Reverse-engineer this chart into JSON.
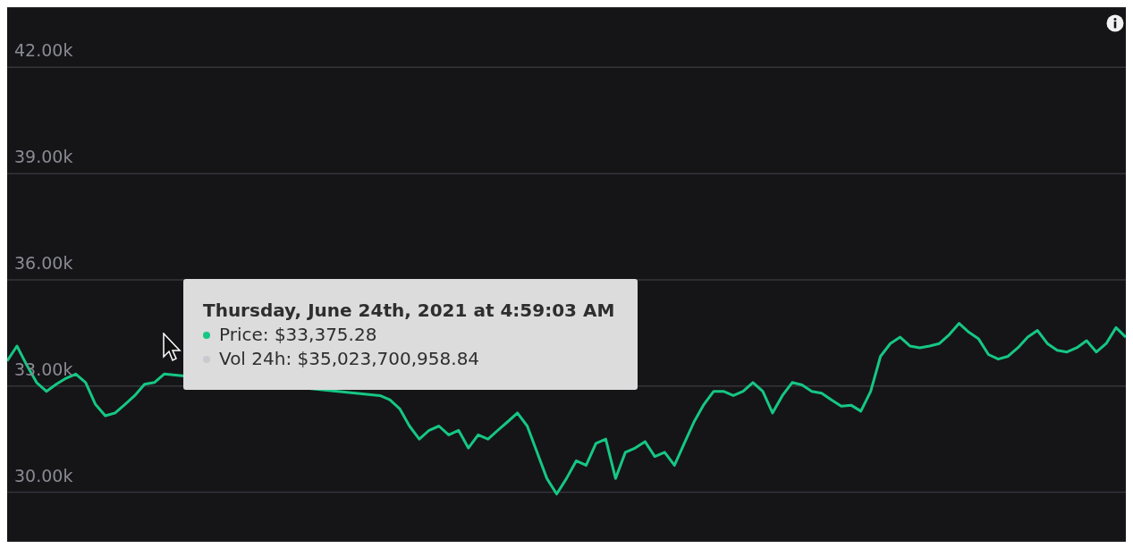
{
  "chart_data": {
    "type": "line",
    "categories": [
      null,
      null,
      null,
      null,
      null,
      null,
      null,
      null,
      null,
      null,
      null,
      null,
      null,
      null,
      null,
      null,
      null,
      null,
      null,
      null,
      null,
      null,
      null,
      null,
      null,
      null,
      null,
      null,
      null,
      null,
      null,
      null,
      null,
      null,
      null,
      null,
      null,
      null,
      null,
      null,
      null,
      null,
      null,
      null,
      null,
      null,
      null,
      null,
      null,
      null,
      null,
      null,
      null,
      null,
      null,
      null,
      null,
      null,
      null,
      null,
      null,
      null,
      null,
      null,
      null,
      null,
      null,
      null,
      null,
      null,
      null,
      null,
      null,
      null,
      null,
      null,
      null,
      null,
      null,
      null,
      null,
      null,
      null,
      null,
      null,
      null,
      null,
      null,
      null,
      null,
      null,
      null,
      null,
      null,
      null,
      null,
      null,
      null,
      null,
      null,
      null,
      null,
      null,
      null,
      null,
      null,
      null,
      null,
      null,
      null,
      null,
      null,
      null,
      null,
      null
    ],
    "values": [
      33710,
      34130,
      33590,
      33100,
      32850,
      33050,
      33220,
      33340,
      33100,
      32480,
      32160,
      32240,
      32480,
      32730,
      33050,
      33100,
      33340,
      null,
      null,
      null,
      null,
      null,
      null,
      null,
      null,
      null,
      null,
      null,
      null,
      null,
      null,
      null,
      null,
      null,
      null,
      null,
      null,
      null,
      32730,
      32610,
      32360,
      31870,
      31500,
      31750,
      31870,
      31620,
      31750,
      31250,
      31620,
      31500,
      31750,
      31990,
      32240,
      31870,
      31130,
      30390,
      29950,
      30390,
      30890,
      30760,
      31380,
      31500,
      30390,
      31130,
      31250,
      31430,
      31010,
      31130,
      30760,
      31380,
      31990,
      32480,
      32850,
      32850,
      32730,
      32850,
      33100,
      32850,
      32240,
      32730,
      33100,
      33030,
      32850,
      32800,
      32610,
      32430,
      32460,
      32290,
      32850,
      33840,
      34200,
      34380,
      34130,
      34080,
      34130,
      34200,
      34450,
      34770,
      34520,
      34330,
      33890,
      33760,
      33840,
      34080,
      34380,
      34570,
      34200,
      34010,
      33960,
      34080,
      34280,
      33960,
      34200,
      34650,
      34380
    ],
    "color": "#16c784",
    "marker": "none",
    "ylim": [
      28600,
      43700
    ],
    "yticks": [
      {
        "value": 30000,
        "label": "30.00k"
      },
      {
        "value": 33000,
        "label": "33.00k"
      },
      {
        "value": 36000,
        "label": "36.00k"
      },
      {
        "value": 39000,
        "label": "39.00k"
      },
      {
        "value": 42000,
        "label": "42.00k"
      }
    ],
    "grid": "y",
    "tick_labels": "y",
    "annotations": [
      "Thursday, June 24th, 2021 at 4:59:03 AM",
      "Price: $33,375.28",
      "Vol 24h: $35,023,700,958.84"
    ]
  }
}
